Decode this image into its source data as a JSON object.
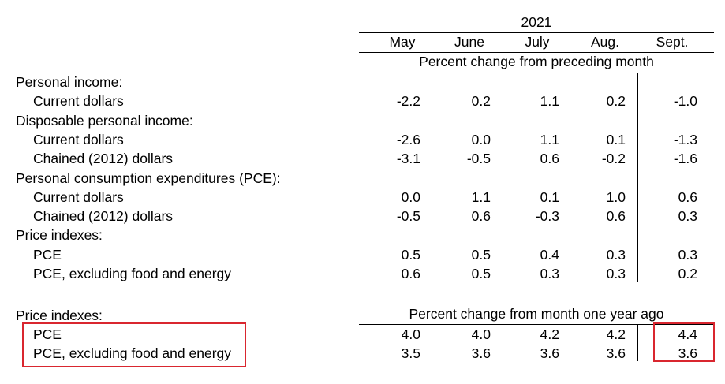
{
  "table": {
    "year": "2021",
    "months": [
      "May",
      "June",
      "July",
      "Aug.",
      "Sept."
    ],
    "section1_caption": "Percent change from preceding month",
    "section2_caption": "Percent change from month one year ago",
    "rows": [
      {
        "label": "Personal income:",
        "indent": false,
        "values": null
      },
      {
        "label": "Current dollars",
        "indent": true,
        "values": [
          "-2.2",
          "0.2",
          "1.1",
          "0.2",
          "-1.0"
        ]
      },
      {
        "label": "Disposable personal income:",
        "indent": false,
        "values": null
      },
      {
        "label": "Current dollars",
        "indent": true,
        "values": [
          "-2.6",
          "0.0",
          "1.1",
          "0.1",
          "-1.3"
        ]
      },
      {
        "label": "Chained (2012) dollars",
        "indent": true,
        "values": [
          "-3.1",
          "-0.5",
          "0.6",
          "-0.2",
          "-1.6"
        ]
      },
      {
        "label": "Personal consumption expenditures (PCE):",
        "indent": false,
        "values": null
      },
      {
        "label": "Current dollars",
        "indent": true,
        "values": [
          "0.0",
          "1.1",
          "0.1",
          "1.0",
          "0.6"
        ]
      },
      {
        "label": "Chained (2012) dollars",
        "indent": true,
        "values": [
          "-0.5",
          "0.6",
          "-0.3",
          "0.6",
          "0.3"
        ]
      },
      {
        "label": "Price indexes:",
        "indent": false,
        "values": null
      },
      {
        "label": "PCE",
        "indent": true,
        "values": [
          "0.5",
          "0.5",
          "0.4",
          "0.3",
          "0.3"
        ]
      },
      {
        "label": "PCE, excluding food and energy",
        "indent": true,
        "values": [
          "0.6",
          "0.5",
          "0.3",
          "0.3",
          "0.2"
        ]
      }
    ],
    "rows2": [
      {
        "label": "Price indexes:",
        "indent": false,
        "values": null
      },
      {
        "label": "PCE",
        "indent": true,
        "values": [
          "4.0",
          "4.0",
          "4.2",
          "4.2",
          "4.4"
        ]
      },
      {
        "label": "PCE, excluding food and energy",
        "indent": true,
        "values": [
          "3.5",
          "3.6",
          "3.6",
          "3.6",
          "3.6"
        ]
      }
    ]
  },
  "highlight_color": "#d9262f"
}
